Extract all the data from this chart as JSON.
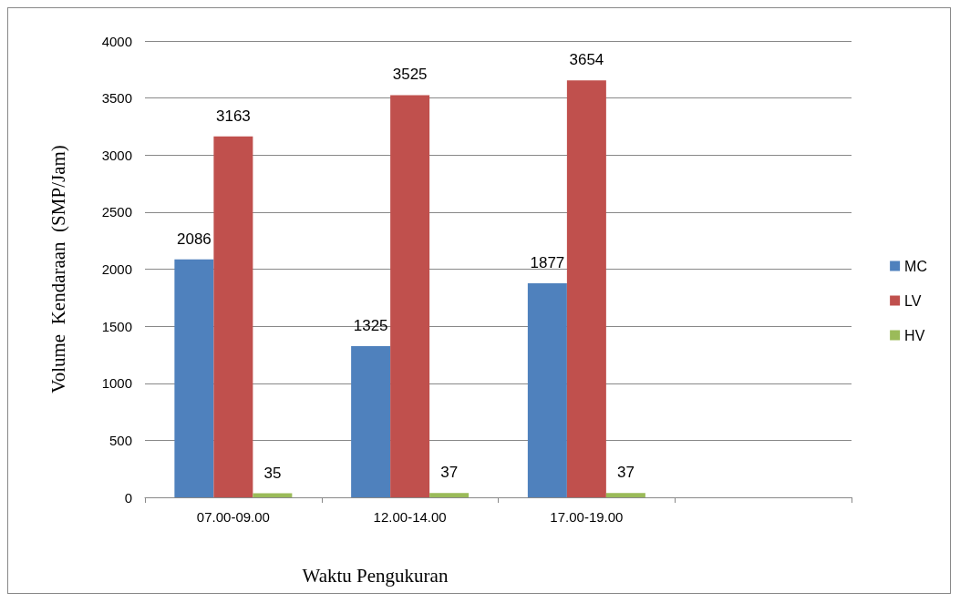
{
  "chart_data": {
    "type": "bar",
    "xlabel": "Waktu Pengukuran",
    "ylabel": "Volume  Kendaraan  (SMP/Jam)",
    "categories": [
      "07.00-09.00",
      "12.00-14.00",
      "17.00-19.00",
      null
    ],
    "series": [
      {
        "name": "MC",
        "color": "#4f81bd",
        "values": [
          2086,
          1325,
          1877,
          null
        ]
      },
      {
        "name": "LV",
        "color": "#c0504d",
        "values": [
          3163,
          3525,
          3654,
          null
        ]
      },
      {
        "name": "HV",
        "color": "#9bbb59",
        "values": [
          35,
          37,
          37,
          null
        ]
      }
    ],
    "ylim": [
      0,
      4000
    ],
    "yticks": [
      0,
      500,
      1000,
      1500,
      2000,
      2500,
      3000,
      3500,
      4000
    ],
    "grid": "y",
    "legend": "right",
    "data_labels": true
  }
}
